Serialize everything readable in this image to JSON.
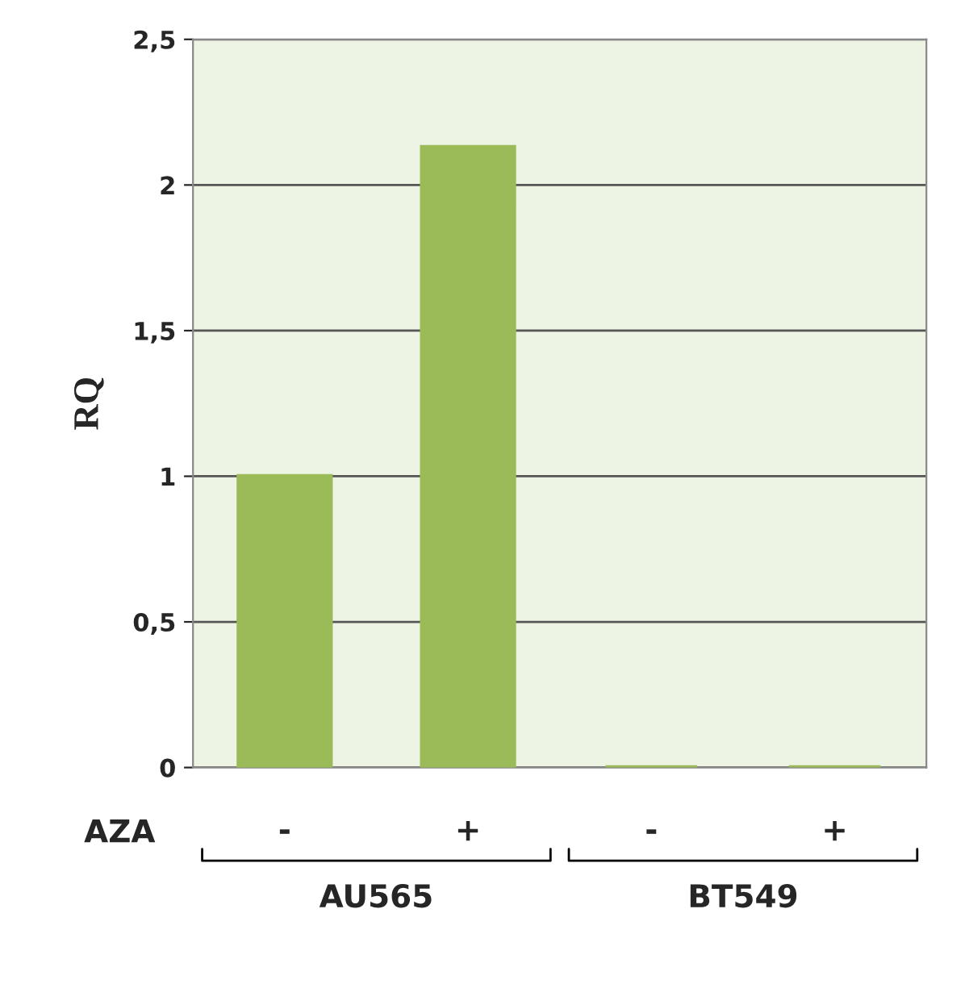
{
  "chart_data": {
    "type": "bar",
    "categories": [
      "-",
      "+",
      "-",
      "+"
    ],
    "values": [
      1.0,
      2.13,
      0,
      0
    ],
    "color": "#9bbb59",
    "ylabel": "RQ",
    "xlabel": "AZA",
    "ylim": [
      0,
      2.5
    ],
    "yticks": [
      {
        "value": 0,
        "label": "0"
      },
      {
        "value": 0.5,
        "label": "0,5"
      },
      {
        "value": 1,
        "label": "1"
      },
      {
        "value": 1.5,
        "label": "1,5"
      },
      {
        "value": 2,
        "label": "2"
      },
      {
        "value": 2.5,
        "label": "2,5"
      }
    ],
    "grid": "y",
    "annotations": [
      "AU565",
      "BT549"
    ]
  }
}
